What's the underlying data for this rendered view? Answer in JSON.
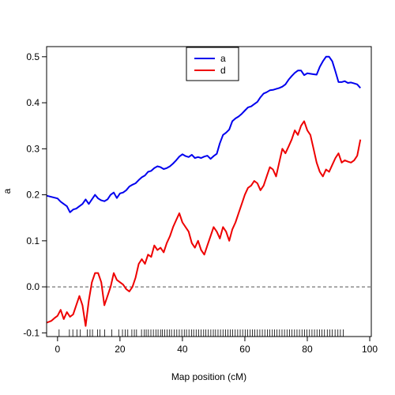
{
  "chart_data": {
    "type": "line",
    "title": "",
    "xlabel": "Map position (cM)",
    "ylabel": "a",
    "xlim": [
      -3.5,
      100.5
    ],
    "ylim": [
      -0.108,
      0.522
    ],
    "x_ticks": [
      0,
      20,
      40,
      60,
      80,
      100
    ],
    "x_tick_labels": [
      "0",
      "20",
      "40",
      "60",
      "80",
      "100"
    ],
    "y_ticks": [
      -0.1,
      0.0,
      0.1,
      0.2,
      0.3,
      0.4,
      0.5
    ],
    "y_tick_labels": [
      "-0.1",
      "0.0",
      "0.1",
      "0.2",
      "0.3",
      "0.4",
      "0.5"
    ],
    "grid": false,
    "legend": {
      "position": "top-center"
    },
    "reference_line": {
      "y": 0.0,
      "style": "dashed",
      "color": "#555555"
    },
    "series": [
      {
        "name": "a",
        "color": "#0000ee",
        "x": [
          -3.5,
          0,
          1,
          2,
          3,
          4,
          5,
          6,
          7,
          8,
          9,
          10,
          11,
          12,
          13,
          14,
          15,
          16,
          17,
          18,
          19,
          20,
          21,
          22,
          23,
          24,
          25,
          26,
          27,
          28,
          29,
          30,
          31,
          32,
          33,
          34,
          35,
          36,
          37,
          38,
          39,
          40,
          41,
          42,
          43,
          44,
          45,
          46,
          47,
          48,
          49,
          50,
          51,
          52,
          53,
          54,
          55,
          56,
          57,
          58,
          59,
          60,
          61,
          62,
          63,
          64,
          65,
          66,
          67,
          68,
          69,
          70,
          71,
          72,
          73,
          74,
          75,
          76,
          77,
          78,
          79,
          80,
          81,
          82,
          83,
          84,
          85,
          86,
          87,
          88,
          89,
          90,
          91,
          92,
          93,
          94,
          95,
          96,
          97
        ],
        "y": [
          0.198,
          0.192,
          0.185,
          0.18,
          0.175,
          0.162,
          0.168,
          0.17,
          0.175,
          0.18,
          0.19,
          0.18,
          0.19,
          0.2,
          0.192,
          0.188,
          0.186,
          0.19,
          0.2,
          0.205,
          0.193,
          0.203,
          0.205,
          0.21,
          0.218,
          0.222,
          0.225,
          0.232,
          0.238,
          0.242,
          0.25,
          0.252,
          0.258,
          0.262,
          0.26,
          0.256,
          0.258,
          0.262,
          0.268,
          0.275,
          0.283,
          0.288,
          0.284,
          0.282,
          0.287,
          0.28,
          0.282,
          0.28,
          0.283,
          0.285,
          0.278,
          0.284,
          0.289,
          0.312,
          0.33,
          0.335,
          0.342,
          0.36,
          0.366,
          0.37,
          0.376,
          0.383,
          0.39,
          0.392,
          0.397,
          0.402,
          0.412,
          0.42,
          0.423,
          0.427,
          0.428,
          0.43,
          0.432,
          0.435,
          0.44,
          0.45,
          0.458,
          0.465,
          0.47,
          0.47,
          0.46,
          0.464,
          0.463,
          0.462,
          0.461,
          0.478,
          0.49,
          0.5,
          0.5,
          0.49,
          0.468,
          0.445,
          0.445,
          0.447,
          0.443,
          0.444,
          0.442,
          0.44,
          0.432
        ]
      },
      {
        "name": "d",
        "color": "#ee0000",
        "x": [
          -3.5,
          -2,
          -1,
          0,
          1,
          2,
          3,
          4,
          5,
          6,
          7,
          8,
          9,
          10,
          11,
          12,
          13,
          14,
          15,
          16,
          17,
          18,
          19,
          20,
          21,
          22,
          23,
          24,
          25,
          26,
          27,
          28,
          29,
          30,
          31,
          32,
          33,
          34,
          35,
          36,
          37,
          38,
          39,
          40,
          41,
          42,
          43,
          44,
          45,
          46,
          47,
          48,
          49,
          50,
          51,
          52,
          53,
          54,
          55,
          56,
          57,
          58,
          59,
          60,
          61,
          62,
          63,
          64,
          65,
          66,
          67,
          68,
          69,
          70,
          71,
          72,
          73,
          74,
          75,
          76,
          77,
          78,
          79,
          80,
          81,
          82,
          83,
          84,
          85,
          86,
          87,
          88,
          89,
          90,
          91,
          92,
          93,
          94,
          95,
          96,
          97
        ],
        "y": [
          -0.078,
          -0.074,
          -0.068,
          -0.063,
          -0.05,
          -0.07,
          -0.055,
          -0.065,
          -0.06,
          -0.04,
          -0.02,
          -0.04,
          -0.085,
          -0.03,
          0.01,
          0.03,
          0.03,
          0.01,
          -0.04,
          -0.02,
          0.0,
          0.03,
          0.015,
          0.01,
          0.005,
          -0.005,
          -0.01,
          0.0,
          0.02,
          0.05,
          0.06,
          0.05,
          0.07,
          0.065,
          0.09,
          0.08,
          0.085,
          0.075,
          0.095,
          0.11,
          0.13,
          0.145,
          0.16,
          0.14,
          0.13,
          0.12,
          0.095,
          0.085,
          0.1,
          0.08,
          0.07,
          0.09,
          0.11,
          0.13,
          0.12,
          0.105,
          0.13,
          0.12,
          0.1,
          0.125,
          0.14,
          0.16,
          0.18,
          0.2,
          0.215,
          0.22,
          0.23,
          0.225,
          0.21,
          0.22,
          0.24,
          0.26,
          0.255,
          0.24,
          0.27,
          0.3,
          0.29,
          0.305,
          0.32,
          0.34,
          0.33,
          0.35,
          0.36,
          0.34,
          0.33,
          0.3,
          0.27,
          0.25,
          0.24,
          0.255,
          0.25,
          0.265,
          0.28,
          0.29,
          0.27,
          0.275,
          0.272,
          0.27,
          0.275,
          0.285,
          0.32
        ]
      }
    ],
    "markers": [
      0.5,
      3.8,
      4.9,
      6.2,
      7.3,
      9.5,
      10.4,
      11.2,
      12.8,
      13.6,
      15.1,
      17.4,
      19.6,
      20.8,
      21.7,
      22.5,
      23.8,
      24.6,
      25.3,
      26.9,
      27.8,
      28.4,
      29.1,
      29.9,
      30.7,
      31.5,
      32.2,
      33.0,
      33.6,
      34.3,
      35.1,
      35.8,
      36.5,
      37.4,
      38.2,
      39.0,
      39.8,
      40.6,
      41.3,
      42.1,
      42.9,
      43.6,
      44.4,
      45.2,
      46.0,
      46.8,
      47.5,
      48.3,
      49.1,
      49.9,
      50.6,
      51.4,
      52.2,
      53.0,
      53.8,
      54.6,
      55.3,
      56.1,
      56.9,
      57.7,
      58.5,
      59.3,
      60.1,
      60.9,
      61.7,
      62.4,
      63.2,
      64.0,
      64.8,
      65.6,
      66.4,
      67.2,
      68.0,
      68.8,
      69.5,
      70.3,
      71.1,
      71.9,
      72.7,
      73.5,
      74.3,
      75.1,
      75.9,
      76.7,
      77.5,
      78.3,
      79.1,
      79.9,
      80.7,
      81.5,
      82.3,
      83.1,
      83.9,
      84.7,
      85.5,
      86.4,
      87.2,
      88.0,
      88.9,
      89.8,
      90.6,
      91.5
    ]
  }
}
